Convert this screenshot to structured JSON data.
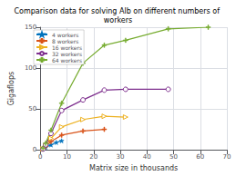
{
  "chart_data": {
    "type": "line",
    "title": "Comparison data for solving Alb on different numbers of workers",
    "x_label": "Matrix size in thousands",
    "y_label": "Gigaflops",
    "xlim": [
      0,
      70
    ],
    "ylim": [
      0,
      150
    ],
    "xticks": [
      0,
      10,
      20,
      30,
      40,
      50,
      60,
      70
    ],
    "yticks": [
      0,
      50,
      100,
      150
    ],
    "grid": true,
    "legend": "upper left",
    "series": [
      {
        "name": "4 workers",
        "color": "#0072bd",
        "marker": "star",
        "x": [
          1,
          2,
          4,
          6,
          8
        ],
        "values": [
          1,
          3,
          6,
          9,
          11
        ]
      },
      {
        "name": "8 workers",
        "color": "#d95319",
        "marker": "plus",
        "x": [
          1,
          2,
          4,
          8,
          16,
          24
        ],
        "values": [
          1,
          4,
          10,
          18,
          23,
          25
        ]
      },
      {
        "name": "16 workers",
        "color": "#edb120",
        "marker": "triangle-right-open",
        "x": [
          1,
          2,
          4,
          8,
          16,
          24,
          32
        ],
        "values": [
          1,
          5,
          14,
          28,
          37,
          41,
          40
        ]
      },
      {
        "name": "32 workers",
        "color": "#7e2f8e",
        "marker": "circle-open",
        "x": [
          1,
          2,
          4,
          8,
          16,
          24,
          32,
          48
        ],
        "values": [
          1,
          6,
          20,
          48,
          61,
          73,
          74,
          74
        ]
      },
      {
        "name": "64 workers",
        "color": "#77ac30",
        "marker": "plus",
        "x": [
          1,
          2,
          4,
          8,
          16,
          24,
          32,
          48,
          63
        ],
        "values": [
          2,
          8,
          24,
          57,
          106,
          128,
          134,
          148,
          150
        ]
      }
    ]
  }
}
